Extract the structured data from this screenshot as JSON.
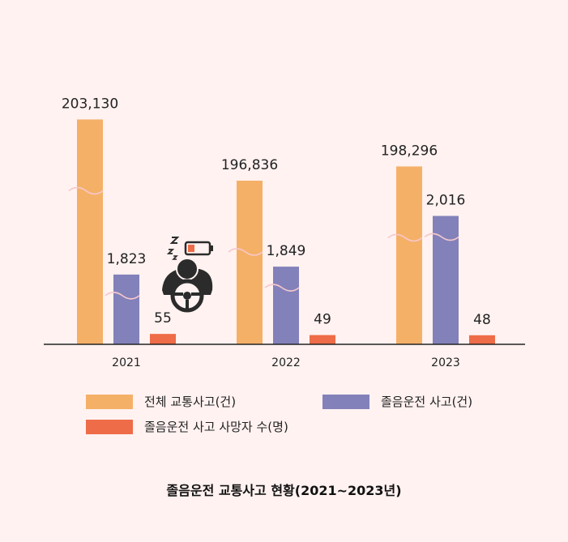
{
  "chart_data": {
    "type": "bar",
    "title": "졸음운전 교통사고 현황(2021~2023년)",
    "categories": [
      "2021",
      "2022",
      "2023"
    ],
    "series": [
      {
        "name": "전체 교통사고(건)",
        "values": [
          203130,
          196836,
          198296
        ],
        "labels": [
          "203,130",
          "196,836",
          "198,296"
        ],
        "color": "#f5b068",
        "broken_axis": true
      },
      {
        "name": "졸음운전 사고(건)",
        "values": [
          1823,
          1849,
          2016
        ],
        "labels": [
          "1,823",
          "1,849",
          "2,016"
        ],
        "color": "#8381ba",
        "broken_axis": true
      },
      {
        "name": "졸음운전 사고 사망자 수(명)",
        "values": [
          55,
          49,
          48
        ],
        "labels": [
          "55",
          "49",
          "48"
        ],
        "color": "#ee6c47",
        "broken_axis": false
      }
    ],
    "grid": false,
    "legend_position": "bottom",
    "xlabel": "",
    "ylabel": ""
  },
  "colors": {
    "background": "#fff2f1",
    "axis": "#222222",
    "break_mark": "#f6c8cc",
    "icon": "#2b2b2b"
  },
  "icon": "drowsy-driver-icon"
}
